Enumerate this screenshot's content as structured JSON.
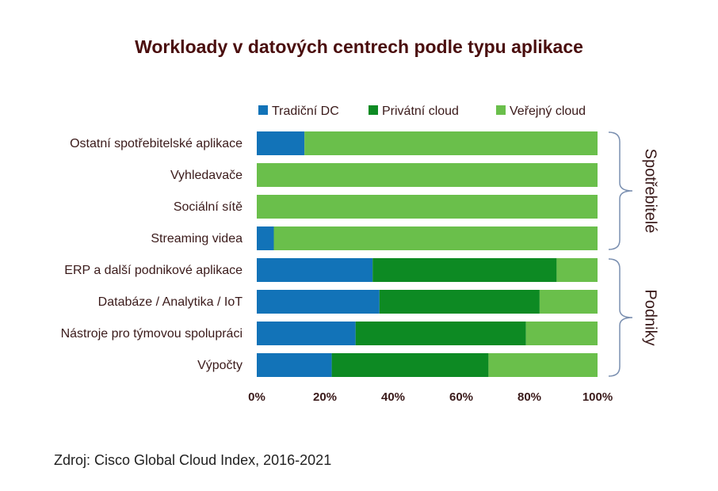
{
  "title": "Workloady v datových centrech podle typu aplikace",
  "source": "Zdroj: Cisco Global Cloud Index, 2016-2021",
  "colors": {
    "tradicni": "#1273b8",
    "privatni": "#0d8a23",
    "verejny": "#6abf4b",
    "bracket": "#7a8fb0"
  },
  "chart_data": {
    "type": "bar",
    "orientation": "horizontal",
    "stacked": true,
    "percent": true,
    "categories": [
      "Ostatní spotřebitelské aplikace",
      "Vyhledavače",
      "Sociální sítě",
      "Streaming videa",
      "ERP a další podnikové aplikace",
      "Databáze / Analytika / IoT",
      "Nástroje pro týmovou spolupráci",
      "Výpočty"
    ],
    "series": [
      {
        "name": "Tradiční DC",
        "color": "#1273b8",
        "values": [
          14,
          0,
          0,
          5,
          34,
          36,
          29,
          22
        ]
      },
      {
        "name": "Privátní cloud",
        "color": "#0d8a23",
        "values": [
          0,
          0,
          0,
          0,
          54,
          47,
          50,
          46
        ]
      },
      {
        "name": "Veřejný cloud",
        "color": "#6abf4b",
        "values": [
          86,
          100,
          100,
          95,
          12,
          17,
          21,
          32
        ]
      }
    ],
    "xticks": [
      "0%",
      "20%",
      "40%",
      "60%",
      "80%",
      "100%"
    ],
    "xlim": [
      0,
      100
    ],
    "legend_position": "top",
    "groups": [
      {
        "label": "Spotřebitelé",
        "categories": [
          0,
          1,
          2,
          3
        ]
      },
      {
        "label": "Podniky",
        "categories": [
          4,
          5,
          6,
          7
        ]
      }
    ]
  }
}
